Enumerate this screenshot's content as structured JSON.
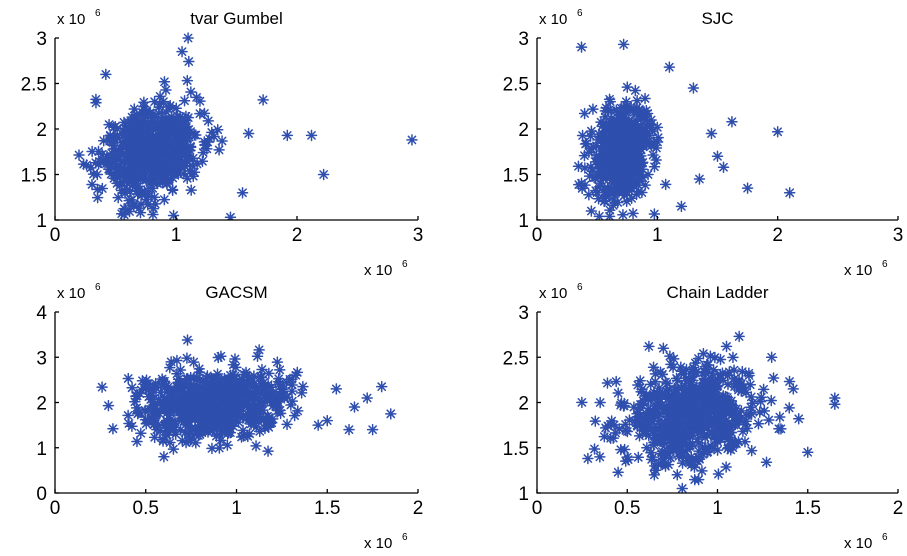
{
  "figure": {
    "marker_color": "#2f4fae",
    "marker": "*"
  },
  "chart_data": [
    {
      "type": "scatter",
      "title": "tvar Gumbel",
      "x_multiplier": {
        "base": "x 10",
        "exp": "6"
      },
      "y_multiplier": {
        "base": "x 10",
        "exp": "6"
      },
      "xlim": [
        0,
        3
      ],
      "ylim": [
        1,
        3
      ],
      "xticks": [
        0,
        1,
        2,
        3
      ],
      "yticks": [
        1,
        1.5,
        2,
        2.5,
        3
      ],
      "cloud": {
        "cx": 0.8,
        "cy": 1.75,
        "sx": 0.2,
        "sy": 0.3,
        "n": 650,
        "seed": 11
      },
      "points": [
        [
          1.1,
          3.0
        ],
        [
          1.05,
          2.85
        ],
        [
          2.95,
          1.88
        ],
        [
          2.22,
          1.5
        ],
        [
          2.12,
          1.93
        ],
        [
          1.92,
          1.93
        ],
        [
          1.45,
          1.03
        ],
        [
          1.72,
          2.32
        ],
        [
          1.55,
          1.3
        ],
        [
          0.35,
          1.5
        ],
        [
          0.42,
          2.6
        ],
        [
          1.6,
          1.95
        ],
        [
          0.98,
          1.05
        ]
      ]
    },
    {
      "type": "scatter",
      "title": "SJC",
      "x_multiplier": {
        "base": "x 10",
        "exp": "6"
      },
      "y_multiplier": {
        "base": "x 10",
        "exp": "6"
      },
      "xlim": [
        0,
        3
      ],
      "ylim": [
        1,
        3
      ],
      "xticks": [
        0,
        1,
        2,
        3
      ],
      "yticks": [
        1,
        1.5,
        2,
        2.5,
        3
      ],
      "cloud": {
        "cx": 0.7,
        "cy": 1.75,
        "sx": 0.12,
        "sy": 0.3,
        "n": 600,
        "seed": 23
      },
      "points": [
        [
          0.37,
          2.9
        ],
        [
          0.72,
          2.93
        ],
        [
          1.1,
          2.68
        ],
        [
          2.0,
          1.97
        ],
        [
          2.1,
          1.3
        ],
        [
          1.75,
          1.35
        ],
        [
          1.55,
          1.58
        ],
        [
          1.45,
          1.95
        ],
        [
          1.5,
          1.7
        ],
        [
          1.62,
          2.08
        ],
        [
          1.2,
          1.15
        ],
        [
          1.3,
          2.45
        ],
        [
          1.35,
          1.45
        ]
      ]
    },
    {
      "type": "scatter",
      "title": "GACSM",
      "x_multiplier": {
        "base": "x 10",
        "exp": "6"
      },
      "y_multiplier": {
        "base": "x 10",
        "exp": "6"
      },
      "xlim": [
        0,
        2
      ],
      "ylim": [
        0,
        4
      ],
      "xticks": [
        0,
        0.5,
        1,
        1.5,
        2
      ],
      "yticks": [
        0,
        1,
        2,
        3,
        4
      ],
      "cloud": {
        "cx": 0.88,
        "cy": 2.0,
        "sx": 0.2,
        "sy": 0.45,
        "n": 700,
        "seed": 37
      },
      "points": [
        [
          0.73,
          3.38
        ],
        [
          1.8,
          2.35
        ],
        [
          1.85,
          1.75
        ],
        [
          1.75,
          1.4
        ],
        [
          1.72,
          2.1
        ],
        [
          1.65,
          1.9
        ],
        [
          1.62,
          1.4
        ],
        [
          1.55,
          2.3
        ],
        [
          1.5,
          1.6
        ],
        [
          0.45,
          2.15
        ],
        [
          0.45,
          1.88
        ],
        [
          0.6,
          0.8
        ],
        [
          1.45,
          1.5
        ]
      ]
    },
    {
      "type": "scatter",
      "title": "Chain Ladder",
      "x_multiplier": {
        "base": "x 10",
        "exp": "6"
      },
      "y_multiplier": {
        "base": "x 10",
        "exp": "6"
      },
      "xlim": [
        0,
        2
      ],
      "ylim": [
        1,
        3
      ],
      "xticks": [
        0,
        0.5,
        1,
        1.5,
        2
      ],
      "yticks": [
        1,
        1.5,
        2,
        2.5,
        3
      ],
      "cloud": {
        "cx": 0.85,
        "cy": 1.85,
        "sx": 0.2,
        "sy": 0.3,
        "n": 650,
        "seed": 53
      },
      "points": [
        [
          1.12,
          2.73
        ],
        [
          1.65,
          2.05
        ],
        [
          1.65,
          1.98
        ],
        [
          1.5,
          1.45
        ],
        [
          1.42,
          2.15
        ],
        [
          1.3,
          2.5
        ],
        [
          0.35,
          2.0
        ],
        [
          0.38,
          1.72
        ],
        [
          0.65,
          1.2
        ],
        [
          1.05,
          2.62
        ],
        [
          0.62,
          2.62
        ],
        [
          1.45,
          1.82
        ],
        [
          0.7,
          2.6
        ]
      ]
    }
  ]
}
